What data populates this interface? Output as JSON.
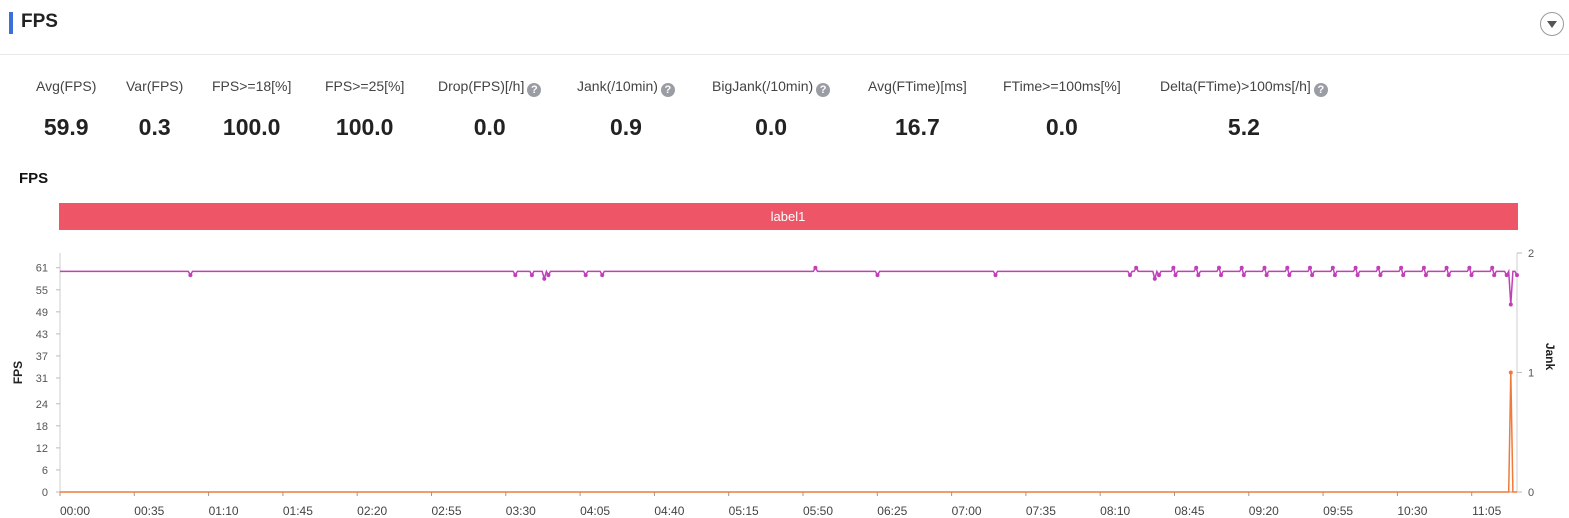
{
  "header": {
    "title": "FPS",
    "collapse_icon": "chevron-down-icon"
  },
  "metrics": [
    {
      "label": "Avg(FPS)",
      "value": "59.9",
      "help": false
    },
    {
      "label": "Var(FPS)",
      "value": "0.3",
      "help": false
    },
    {
      "label": "FPS>=18[%]",
      "value": "100.0",
      "help": false
    },
    {
      "label": "FPS>=25[%]",
      "value": "100.0",
      "help": false
    },
    {
      "label": "Drop(FPS)[/h]",
      "value": "0.0",
      "help": true
    },
    {
      "label": "Jank(/10min)",
      "value": "0.9",
      "help": true
    },
    {
      "label": "BigJank(/10min)",
      "value": "0.0",
      "help": true
    },
    {
      "label": "Avg(FTime)[ms]",
      "value": "16.7",
      "help": false
    },
    {
      "label": "FTime>=100ms[%]",
      "value": "0.0",
      "help": false
    },
    {
      "label": "Delta(FTime)>100ms[/h]",
      "value": "5.2",
      "help": true
    }
  ],
  "chart": {
    "title": "FPS",
    "label_band": "label1"
  },
  "colors": {
    "accent": "#3c6fd8",
    "band": "#ee5566",
    "fps_series": "#c040b8",
    "jank_series": "#f07a3a"
  },
  "chart_data": {
    "type": "line",
    "x_ticks": [
      "00:00",
      "00:35",
      "01:10",
      "01:45",
      "02:20",
      "02:55",
      "03:30",
      "04:05",
      "04:40",
      "05:15",
      "05:50",
      "06:25",
      "07:00",
      "07:35",
      "08:10",
      "08:45",
      "09:20",
      "09:55",
      "10:30",
      "11:05"
    ],
    "ylabel": "FPS",
    "y_ticks": [
      0,
      6,
      12,
      18,
      24,
      31,
      37,
      43,
      49,
      55,
      61
    ],
    "ylim": [
      0,
      65
    ],
    "y2label": "Jank",
    "y2_ticks": [
      0,
      1,
      2
    ],
    "y2lim": [
      0,
      2
    ],
    "x_duration_seconds": 704,
    "grid": false,
    "series": [
      {
        "name": "FPS",
        "axis": "left",
        "baseline": 60,
        "dips": [
          {
            "t": 63,
            "v": 59
          },
          {
            "t": 220,
            "v": 59
          },
          {
            "t": 228,
            "v": 59
          },
          {
            "t": 234,
            "v": 58
          },
          {
            "t": 236,
            "v": 59
          },
          {
            "t": 254,
            "v": 59
          },
          {
            "t": 262,
            "v": 59
          },
          {
            "t": 365,
            "v": 61
          },
          {
            "t": 395,
            "v": 59
          },
          {
            "t": 452,
            "v": 59
          },
          {
            "t": 517,
            "v": 59
          },
          {
            "t": 520,
            "v": 61
          },
          {
            "t": 529,
            "v": 58
          },
          {
            "t": 531,
            "v": 59
          },
          {
            "t": 699,
            "v": 59
          },
          {
            "t": 701,
            "v": 51
          },
          {
            "t": 703,
            "v": 60
          }
        ],
        "dense_oscillation_from_seconds": 530,
        "oscillation_range": [
          59,
          61
        ]
      },
      {
        "name": "Jank",
        "axis": "right",
        "points": [
          {
            "t": 0,
            "v": 0
          },
          {
            "t": 700,
            "v": 0
          },
          {
            "t": 701,
            "v": 1
          },
          {
            "t": 702,
            "v": 0
          },
          {
            "t": 704,
            "v": 0
          }
        ]
      }
    ]
  }
}
